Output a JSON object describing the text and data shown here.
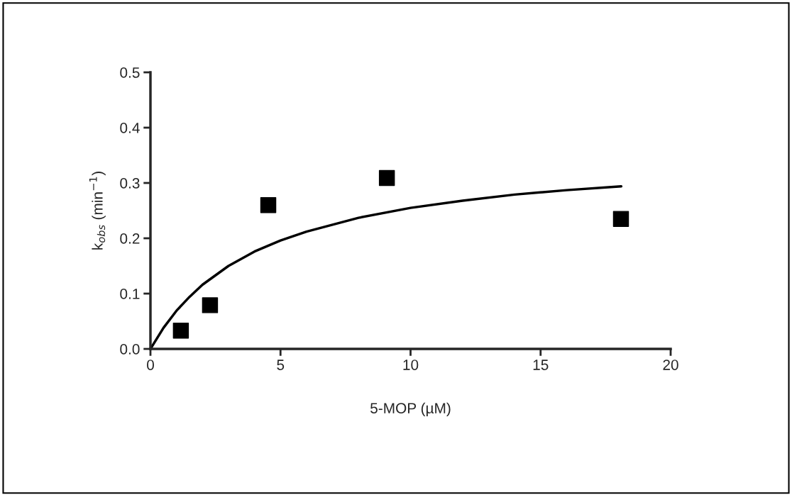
{
  "chart_data": {
    "type": "scatter",
    "xlabel": "5-MOP (µM)",
    "ylabel": "k$_{obs}$ (min$^{−1}$)",
    "xlim": [
      0,
      20
    ],
    "xticks": [
      0,
      5,
      10,
      15,
      20
    ],
    "ylim": [
      0,
      0.5
    ],
    "yticks": [
      {
        "value": 0,
        "label": "0.0"
      },
      0.1,
      0.2,
      0.3,
      0.4,
      0.5
    ],
    "grid": false,
    "legend": false,
    "marker": "square",
    "series": [
      {
        "color": "#000000",
        "x": [
          1.17,
          2.29,
          4.53,
          9.09,
          18.09
        ],
        "values": [
          0.033,
          0.079,
          0.26,
          0.309,
          0.235
        ]
      },
      {
        "type": "line",
        "color": "#000000",
        "marker": "none",
        "line_style": "solid",
        "x": [
          0,
          0.5,
          1,
          1.5,
          2,
          3,
          4,
          5,
          6,
          8,
          10,
          12,
          14,
          16,
          18.1
        ],
        "values": [
          0,
          0.038,
          0.069,
          0.094,
          0.116,
          0.15,
          0.176,
          0.196,
          0.212,
          0.237,
          0.255,
          0.268,
          0.279,
          0.287,
          0.294
        ]
      }
    ]
  }
}
